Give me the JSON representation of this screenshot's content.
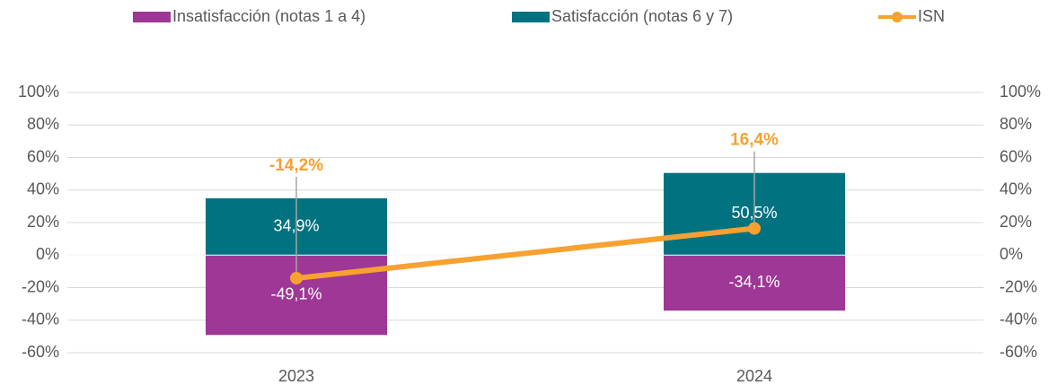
{
  "chart_data": {
    "type": "bar",
    "categories": [
      "2023",
      "2024"
    ],
    "series": [
      {
        "name": "Insatisfacción (notas 1 a 4)",
        "color": "#9e3795",
        "values": [
          -49.1,
          -34.1
        ],
        "value_labels": [
          "-49,1%",
          "-34,1%"
        ]
      },
      {
        "name": "Satisfacción (notas 6 y 7)",
        "color": "#007280",
        "values": [
          34.9,
          50.5
        ],
        "value_labels": [
          "34,9%",
          "50,5%"
        ]
      },
      {
        "name": "ISN",
        "type": "line",
        "axis": "y2",
        "color": "#f7a130",
        "values": [
          -14.2,
          16.4
        ],
        "value_labels": [
          "-14,2%",
          "16,4%"
        ]
      }
    ],
    "stacked": true,
    "ylim": [
      -60,
      100
    ],
    "yticks": [
      {
        "value": -60,
        "label": "-60%"
      },
      {
        "value": -40,
        "label": "-40%"
      },
      {
        "value": -20,
        "label": "-20%"
      },
      {
        "value": 0,
        "label": "0%"
      },
      {
        "value": 20,
        "label": "20%"
      },
      {
        "value": 40,
        "label": "40%"
      },
      {
        "value": 60,
        "label": "60%"
      },
      {
        "value": 80,
        "label": "80%"
      },
      {
        "value": 100,
        "label": "100%"
      }
    ],
    "y2lim": [
      -60,
      100
    ],
    "y2ticks": [
      {
        "value": -60,
        "label": "-60%"
      },
      {
        "value": -40,
        "label": "-40%"
      },
      {
        "value": -20,
        "label": "-20%"
      },
      {
        "value": 0,
        "label": "0%"
      },
      {
        "value": 20,
        "label": "20%"
      },
      {
        "value": 40,
        "label": "40%"
      },
      {
        "value": 60,
        "label": "60%"
      },
      {
        "value": 80,
        "label": "80%"
      },
      {
        "value": 100,
        "label": "100%"
      }
    ],
    "grid": true,
    "legend": "top"
  }
}
